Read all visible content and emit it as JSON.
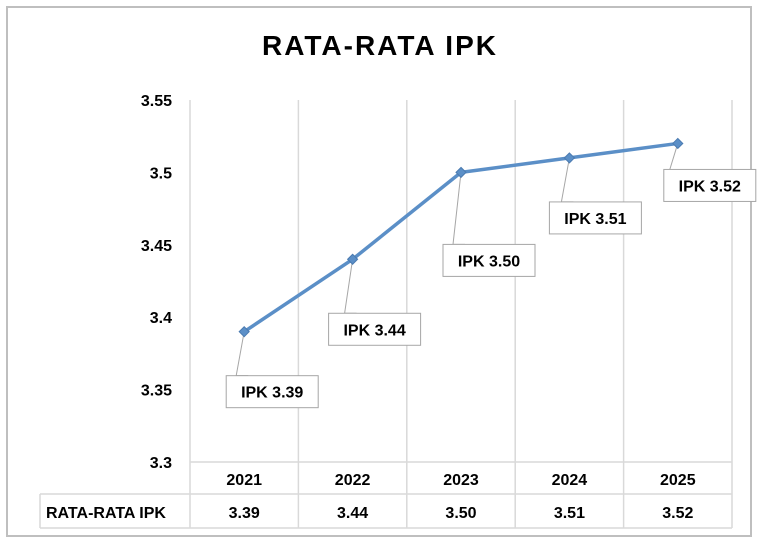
{
  "chart_data": {
    "type": "line",
    "title": "RATA-RATA IPK",
    "categories": [
      "2021",
      "2022",
      "2023",
      "2024",
      "2025"
    ],
    "series": [
      {
        "name": "RATA-RATA IPK",
        "values": [
          3.39,
          3.44,
          3.5,
          3.51,
          3.52
        ],
        "color": "#5b8fc7"
      }
    ],
    "y_ticks": [
      "3.3",
      "3.35",
      "3.4",
      "3.45",
      "3.5",
      "3.55"
    ],
    "ylim": [
      3.3,
      3.55
    ],
    "data_labels": [
      "IPK 3.39",
      "IPK 3.44",
      "IPK 3.50",
      "IPK 3.51",
      "IPK 3.52"
    ],
    "table": {
      "row_header": "RATA-RATA IPK",
      "values": [
        "3.39",
        "3.44",
        "3.50",
        "3.51",
        "3.52"
      ]
    },
    "grid": "vertical",
    "legend": "none"
  }
}
